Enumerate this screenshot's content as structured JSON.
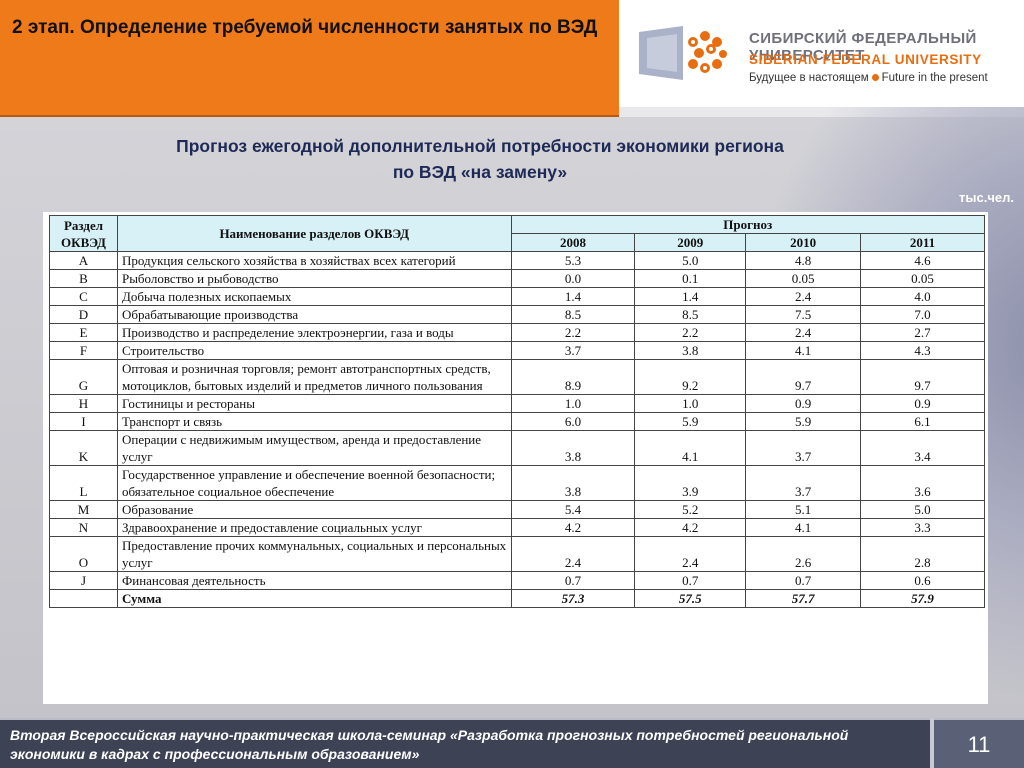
{
  "header": {
    "title": "2 этап. Определение требуемой численности занятых по ВЭД"
  },
  "logo": {
    "name_ru": "СИБИРСКИЙ ФЕДЕРАЛЬНЫЙ УНИВЕРСИТЕТ",
    "name_en": "SIBERIAN FEDERAL UNIVERSITY",
    "tagline_ru": "Будущее в настоящем",
    "tagline_en": "Future in the present",
    "accent_color": "#e86d10"
  },
  "slide": {
    "title_line1": "Прогноз ежегодной дополнительной потребности экономики региона",
    "title_line2": "по ВЭД «на замену»",
    "unit": "тыс.чел."
  },
  "table": {
    "col_code": "Раздел ОКВЭД",
    "col_name": "Наименование разделов ОКВЭД",
    "col_forecast": "Прогноз",
    "years": [
      "2008",
      "2009",
      "2010",
      "2011"
    ],
    "rows": [
      {
        "code": "A",
        "name": "Продукция сельского хозяйства в хозяйствах всех категорий",
        "values": [
          "5.3",
          "5.0",
          "4.8",
          "4.6"
        ]
      },
      {
        "code": "B",
        "name": "Рыболовство и рыбоводство",
        "values": [
          "0.0",
          "0.1",
          "0.05",
          "0.05"
        ]
      },
      {
        "code": "C",
        "name": "Добыча полезных ископаемых",
        "values": [
          "1.4",
          "1.4",
          "2.4",
          "4.0"
        ]
      },
      {
        "code": "D",
        "name": "Обрабатывающие производства",
        "values": [
          "8.5",
          "8.5",
          "7.5",
          "7.0"
        ]
      },
      {
        "code": "E",
        "name": "Производство и распределение электроэнергии, газа и воды",
        "values": [
          "2.2",
          "2.2",
          "2.4",
          "2.7"
        ]
      },
      {
        "code": "F",
        "name": "Строительство",
        "values": [
          "3.7",
          "3.8",
          "4.1",
          "4.3"
        ]
      },
      {
        "code": "G",
        "name": "Оптовая и розничная торговля; ремонт автотранспортных средств, мотоциклов, бытовых изделий и предметов личного пользования",
        "values": [
          "8.9",
          "9.2",
          "9.7",
          "9.7"
        ]
      },
      {
        "code": "H",
        "name": "Гостиницы и рестораны",
        "values": [
          "1.0",
          "1.0",
          "0.9",
          "0.9"
        ]
      },
      {
        "code": "I",
        "name": "Транспорт и связь",
        "values": [
          "6.0",
          "5.9",
          "5.9",
          "6.1"
        ]
      },
      {
        "code": "K",
        "name": "Операции с недвижимым имуществом, аренда и предоставление услуг",
        "values": [
          "3.8",
          "4.1",
          "3.7",
          "3.4"
        ]
      },
      {
        "code": "L",
        "name": "Государственное управление и обеспечение военной безопасности; обязательное социальное обеспечение",
        "values": [
          "3.8",
          "3.9",
          "3.7",
          "3.6"
        ]
      },
      {
        "code": "M",
        "name": "Образование",
        "values": [
          "5.4",
          "5.2",
          "5.1",
          "5.0"
        ]
      },
      {
        "code": "N",
        "name": "Здравоохранение и предоставление социальных услуг",
        "values": [
          "4.2",
          "4.2",
          "4.1",
          "3.3"
        ]
      },
      {
        "code": "O",
        "name": "Предоставление прочих коммунальных, социальных и персональных услуг",
        "values": [
          "2.4",
          "2.4",
          "2.6",
          "2.8"
        ]
      },
      {
        "code": "J",
        "name": "Финансовая деятельность",
        "values": [
          "0.7",
          "0.7",
          "0.7",
          "0.6"
        ]
      }
    ],
    "total": {
      "code": "",
      "name": "Сумма",
      "values": [
        "57.3",
        "57.5",
        "57.7",
        "57.9"
      ]
    }
  },
  "footer": {
    "text": "Вторая Всероссийская научно-практическая школа-семинар «Разработка прогнозных потребностей региональной экономики в кадрах с профессиональным образованием»",
    "page_number": "11"
  }
}
